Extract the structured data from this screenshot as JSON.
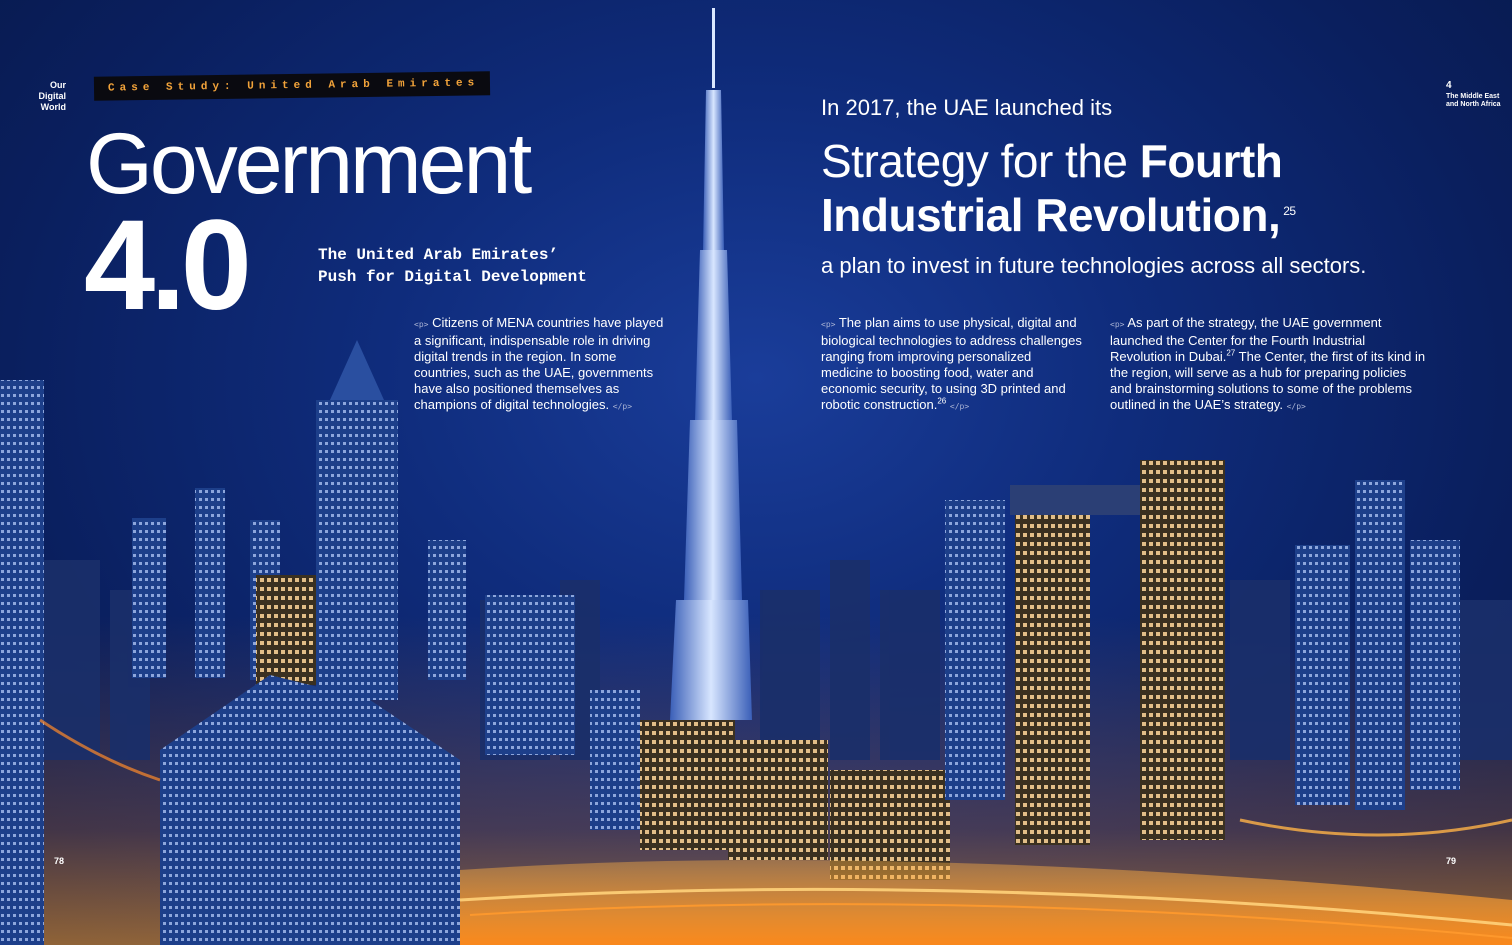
{
  "running_head": {
    "left": "Our\nDigital\nWorld",
    "right_number": "4",
    "right_label": "The Middle East and North Africa"
  },
  "kicker": "Case Study: United Arab Emirates",
  "title": {
    "word": "Government",
    "number": "4.0"
  },
  "subtitle": "The United Arab Emirates’\nPush for Digital Development",
  "body": {
    "col1": "Citizens of MENA countries have played a significant, indispensable role in driving digital trends in the region. In some countries, such as the UAE, governments have also positioned themselves as champions of digital technologies.",
    "col2": "The plan aims to use physical, digital and biological technologies to address challenges ranging from improving personalized medicine to boosting food, water and economic security, to using 3D printed and robotic construction.",
    "col2_ref": "26",
    "col3_a": "As part of the strategy, the UAE government launched the Center for the Fourth Industrial Revolution in Dubai.",
    "col3_ref": "27",
    "col3_b": " The Center, the first of its kind in the region, will serve as a hub for preparing policies and brainstorming solutions to some of the problems outlined in the UAE’s strategy."
  },
  "markers": {
    "open": "<p>",
    "close": "</p>"
  },
  "pull_quote": {
    "lead": "In 2017, the UAE launched its",
    "line1_normal": "Strategy for the ",
    "line1_bold": "Fourth",
    "line2_bold": "Industrial Revolution,",
    "ref": "25",
    "tail": "a plan to invest in future technologies across all sectors."
  },
  "folios": {
    "left": "78",
    "right": "79"
  },
  "colors": {
    "kicker_text": "#f2a33a",
    "kicker_bg": "#0a0a10",
    "sky": "#0f2c7c",
    "glow": "#ffa028"
  }
}
